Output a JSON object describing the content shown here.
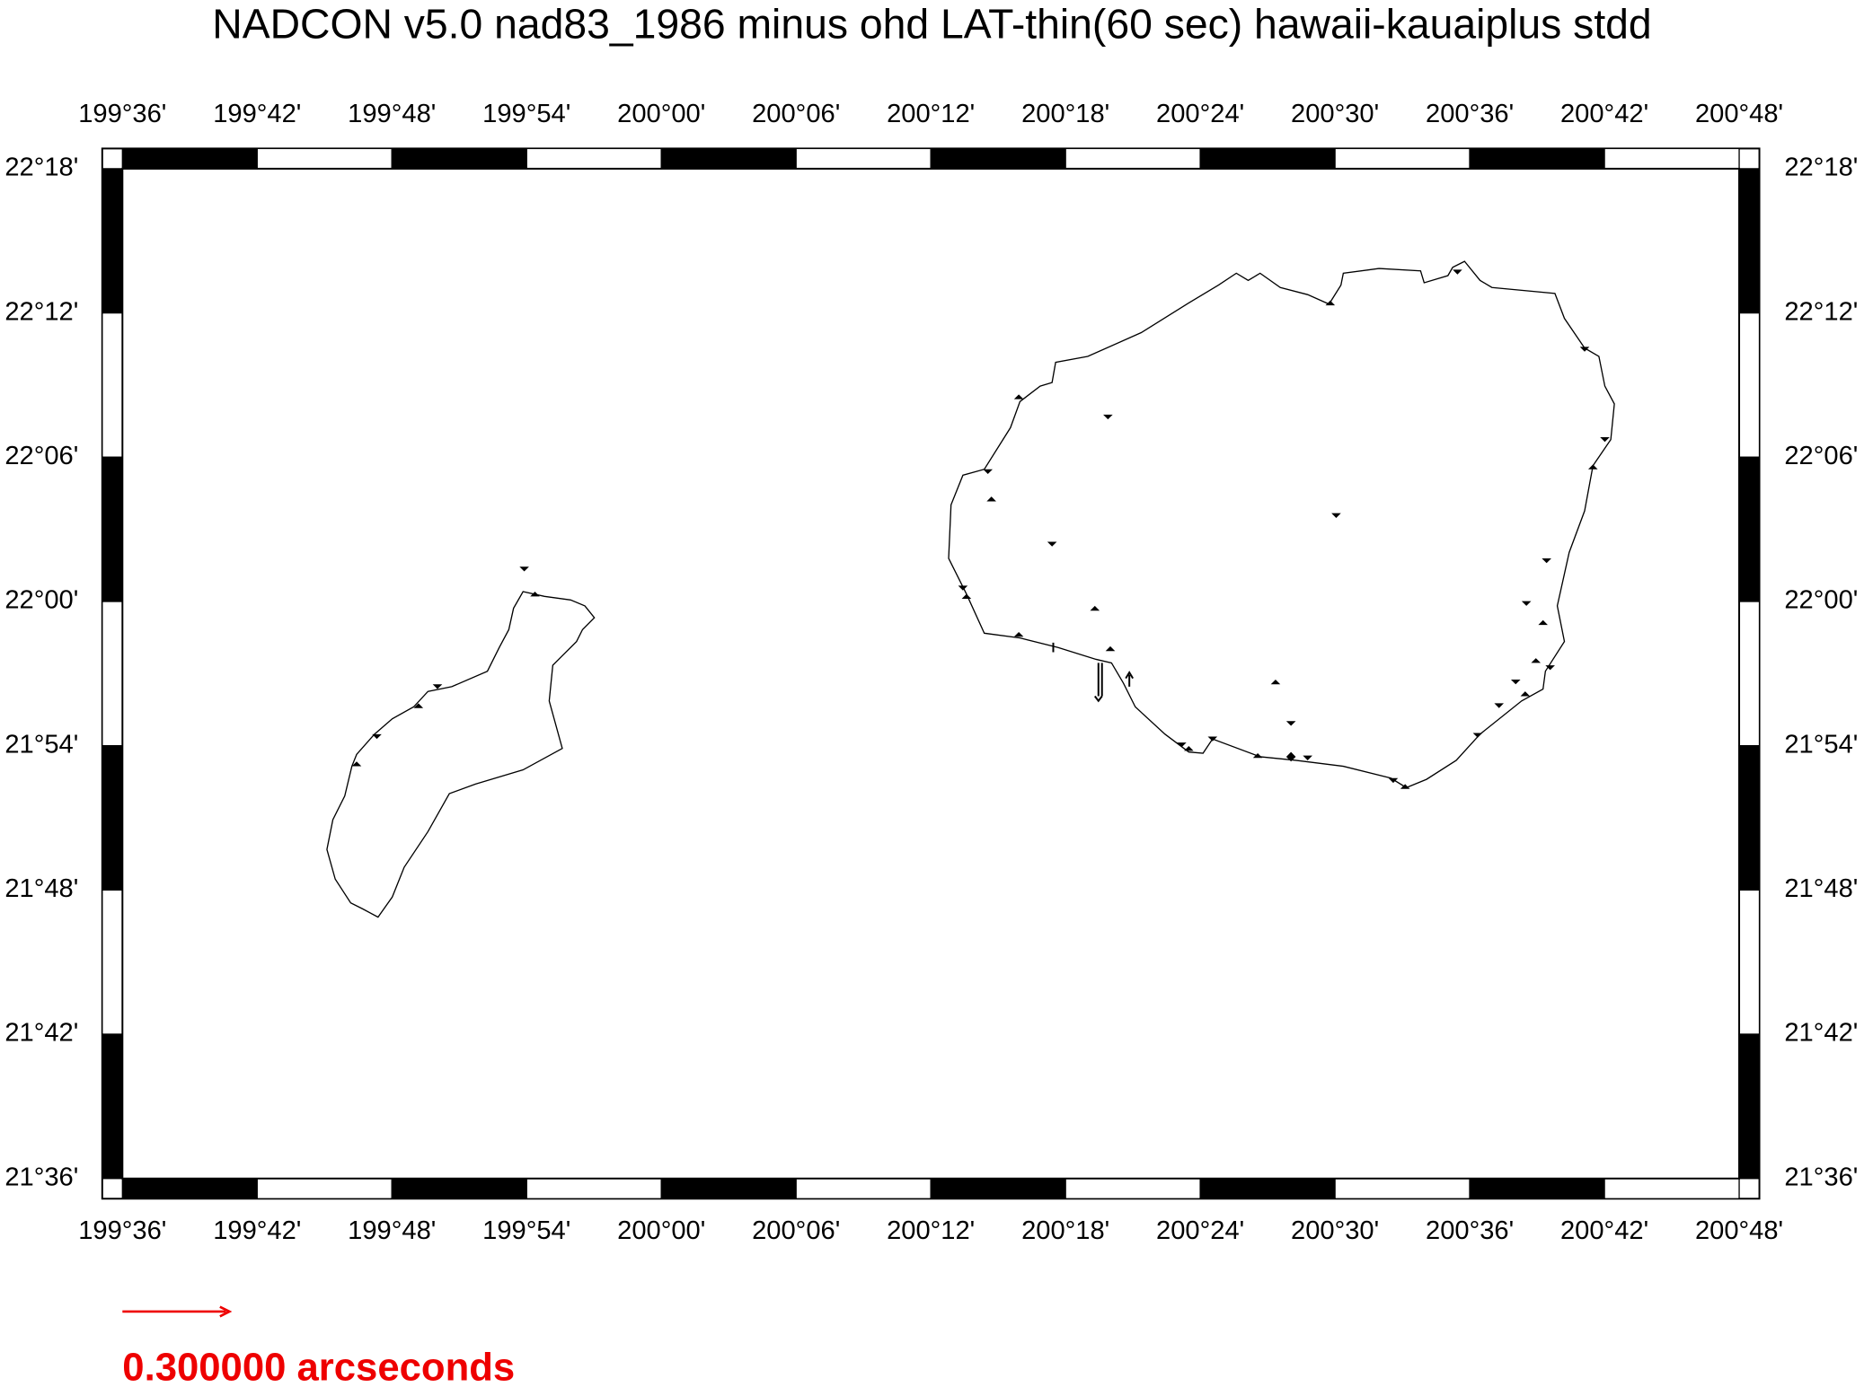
{
  "title": "NADCON v5.0 nad83_1986 minus ohd LAT-thin(60 sec) hawaii-kauaiplus stdd",
  "map": {
    "x_labels": [
      "199°36'",
      "199°42'",
      "199°48'",
      "199°54'",
      "200°00'",
      "200°06'",
      "200°12'",
      "200°18'",
      "200°24'",
      "200°30'",
      "200°36'",
      "200°42'",
      "200°48'"
    ],
    "y_labels": [
      "22°18'",
      "22°12'",
      "22°06'",
      "22°00'",
      "21°54'",
      "21°48'",
      "21°42'",
      "21°36'"
    ]
  },
  "legend": {
    "label": "0.300000 arcseconds"
  }
}
